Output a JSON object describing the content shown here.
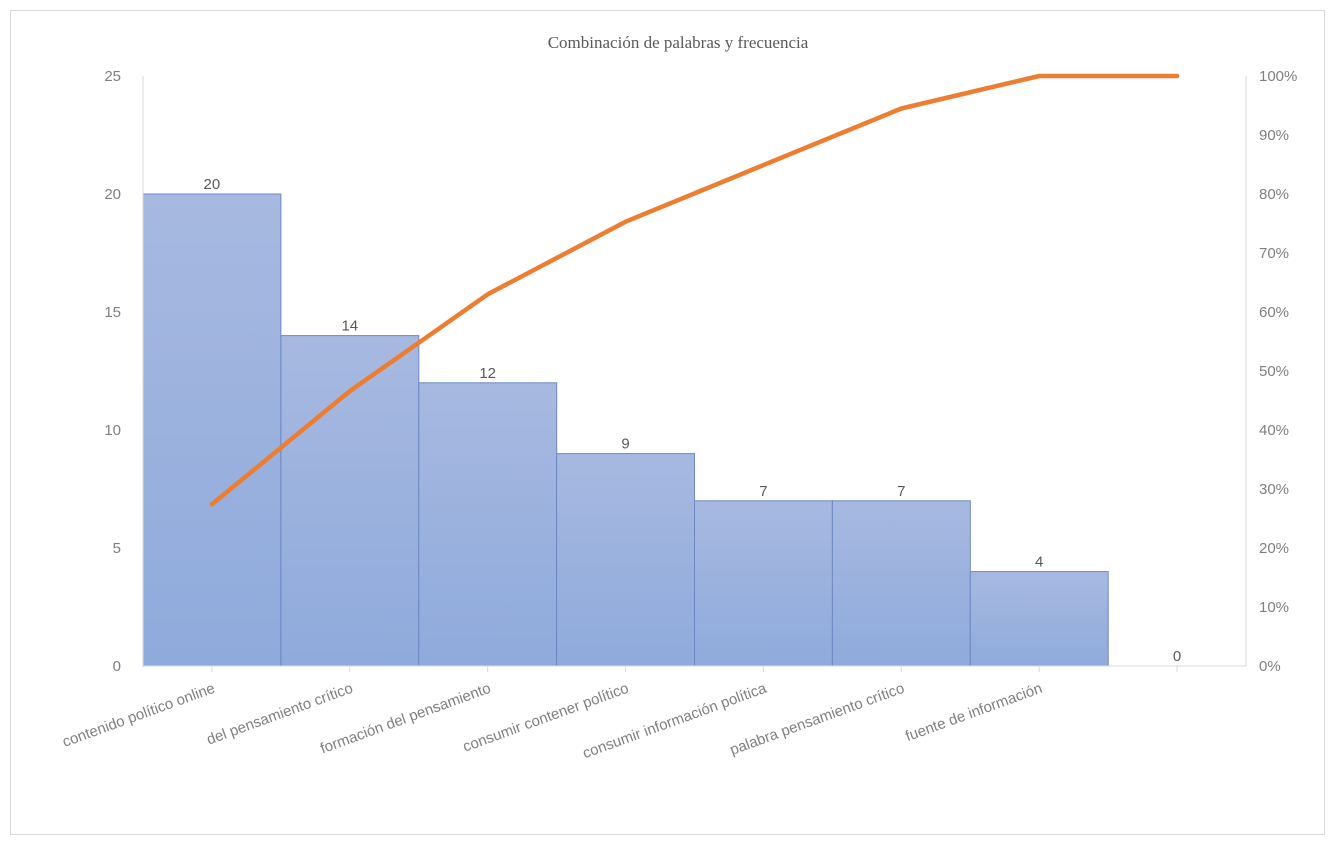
{
  "chart_data": {
    "type": "bar",
    "title": "Combinación de palabras y frecuencia",
    "categories": [
      "contenido político online",
      "del pensamiento crítico",
      "formación del pensamiento",
      "consumir contener político",
      "consumir información política",
      "palabra pensamiento crítico",
      "fuente de información",
      ""
    ],
    "series": [
      {
        "type": "bar",
        "values": [
          20,
          14,
          12,
          9,
          7,
          7,
          4,
          0
        ],
        "color": "#8faadc"
      },
      {
        "type": "line",
        "axis": "secondary",
        "values": [
          0.274,
          0.466,
          0.63,
          0.753,
          0.849,
          0.945,
          1.0,
          1.0
        ],
        "color": "#ed7d31"
      }
    ],
    "ylim": [
      0,
      25
    ],
    "yticks": [
      "0",
      "5",
      "10",
      "15",
      "20",
      "25"
    ],
    "y2lim": [
      0,
      1
    ],
    "y2ticks": [
      "0%",
      "10%",
      "20%",
      "30%",
      "40%",
      "50%",
      "60%",
      "70%",
      "80%",
      "90%",
      "100%"
    ],
    "data_labels": [
      "20",
      "14",
      "12",
      "9",
      "7",
      "7",
      "4",
      "0"
    ],
    "grid": false,
    "legend": "none"
  }
}
